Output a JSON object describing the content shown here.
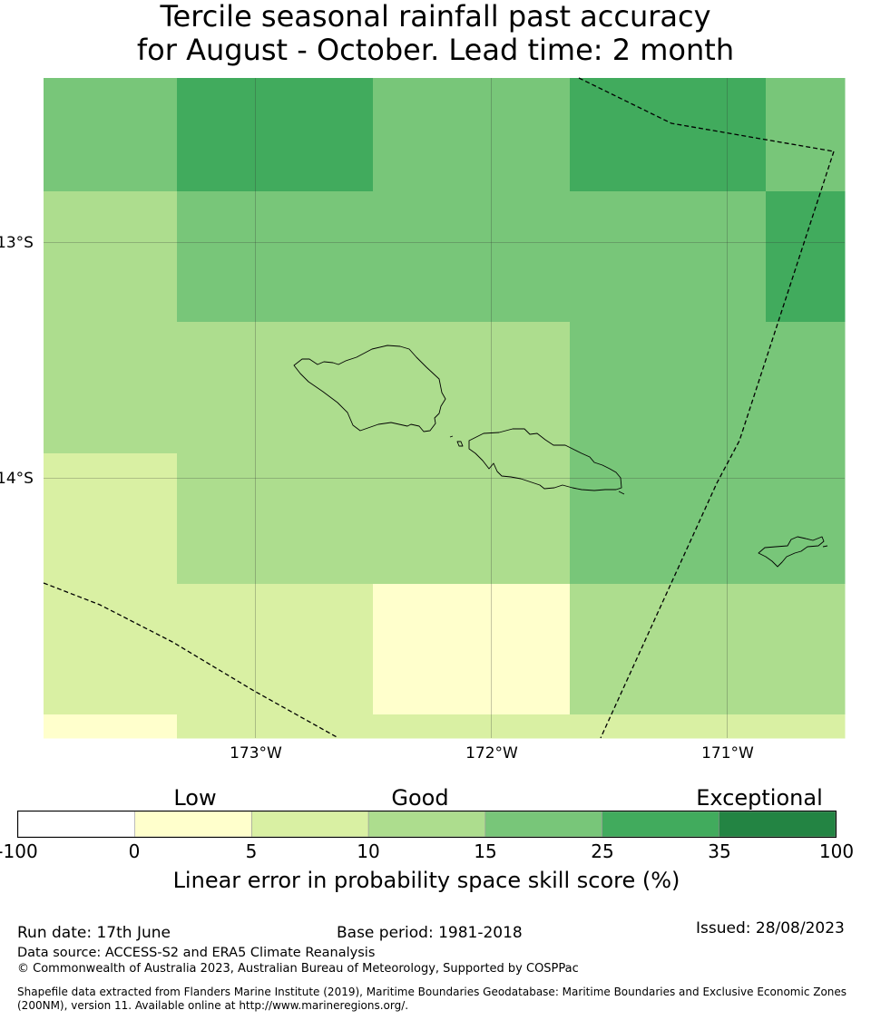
{
  "title": {
    "line1": "Tercile seasonal rainfall past accuracy",
    "line2": "for August - October. Lead time: 2 month"
  },
  "map": {
    "lat_labels": [
      "13°S",
      "14°S"
    ],
    "lon_labels": [
      "173°W",
      "172°W",
      "171°W"
    ],
    "grid_skill_percent_ranges": [
      [
        "15-25",
        "25-35",
        "25-35",
        "15-25",
        "15-25",
        "25-35",
        "25-35",
        "15-25"
      ],
      [
        "10-15",
        "15-25",
        "15-25",
        "15-25",
        "15-25",
        "15-25",
        "15-25",
        "25-35"
      ],
      [
        "10-15",
        "10-15",
        "10-15",
        "10-15",
        "10-15",
        "15-25",
        "15-25",
        "15-25"
      ],
      [
        "5-10",
        "10-15",
        "10-15",
        "10-15",
        "10-15",
        "15-25",
        "15-25",
        "15-25"
      ],
      [
        "5-10",
        "5-10",
        "5-10",
        "0-5",
        "0-5",
        "10-15",
        "10-15",
        "10-15"
      ],
      [
        "0-5",
        "5-10",
        "5-10",
        "5-10",
        "5-10",
        "5-10",
        "5-10",
        "5-10"
      ]
    ],
    "features": [
      "coastline",
      "eez-boundary",
      "graticule"
    ]
  },
  "legend": {
    "categories": [
      "Low",
      "Good",
      "Exceptional"
    ],
    "ticks": [
      "-100",
      "0",
      "5",
      "10",
      "15",
      "25",
      "35",
      "100"
    ],
    "colors": [
      "#ffffff",
      "#ffffcc",
      "#d9f0a3",
      "#addd8e",
      "#78c679",
      "#41ab5d",
      "#238443"
    ],
    "title": "Linear error in probability space skill score (%)"
  },
  "footer": {
    "run_date": "Run date: 17th June",
    "base_period": "Base period: 1981-2018",
    "issued": "Issued: 28/08/2023",
    "data_source": "Data source: ACCESS-S2 and ERA5 Climate Reanalysis",
    "copyright": "© Commonwealth of Australia 2023, Australian Bureau of Meteorology, Supported by COSPPac",
    "shapefile": "Shapefile data extracted from Flanders Marine Institute (2019), Maritime Boundaries Geodatabase: Maritime Boundaries and Exclusive Economic Zones (200NM), version 11. Available online at http://www.marineregions.org/."
  }
}
